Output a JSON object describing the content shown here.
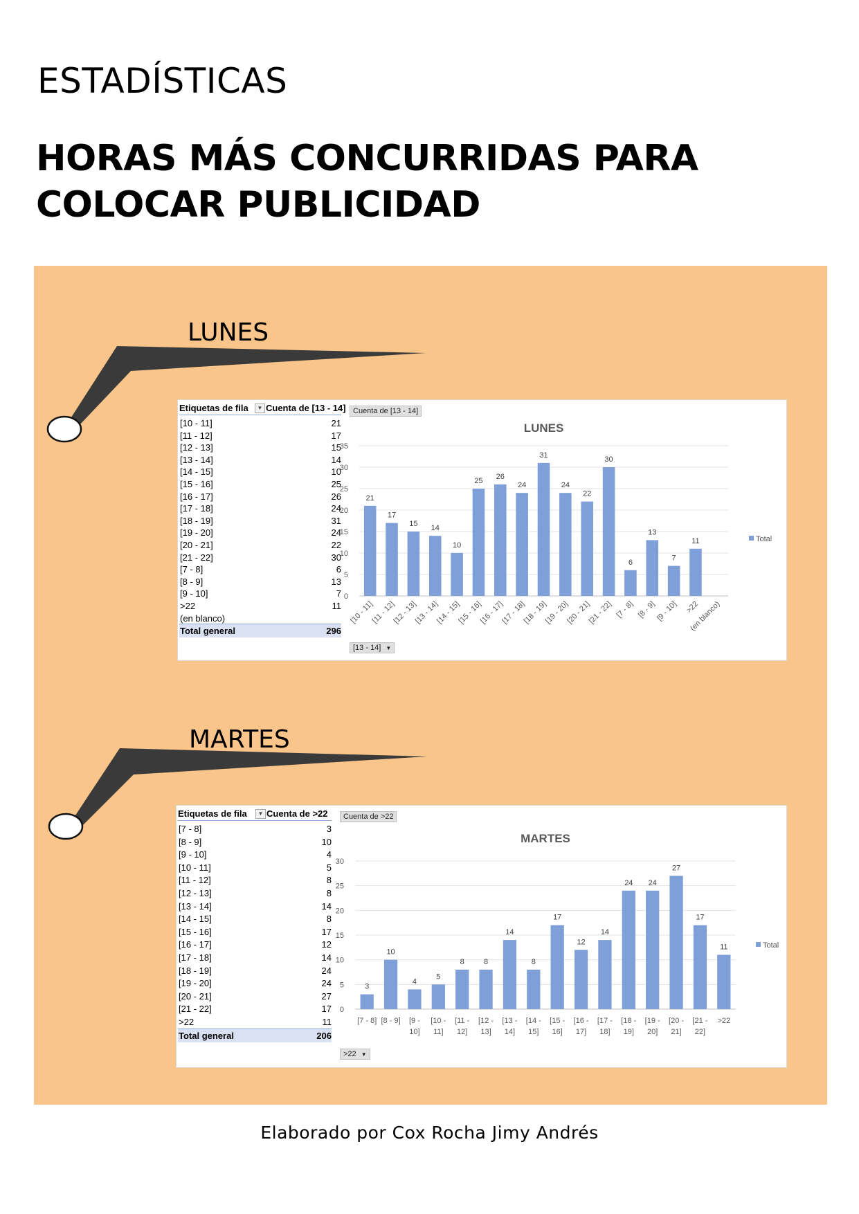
{
  "header": {
    "section": "ESTADÍSTICAS",
    "title": "HORAS MÁS CONCURRIDAS PARA COLOCAR PUBLICIDAD"
  },
  "days": [
    {
      "day": "LUNES",
      "pivot": {
        "col1": "Etiquetas de fila",
        "col2": "Cuenta de [13 - 14]",
        "rows": [
          {
            "k": "[10 - 11]",
            "v": "21"
          },
          {
            "k": "[11 - 12]",
            "v": "17"
          },
          {
            "k": "[12 - 13]",
            "v": "15"
          },
          {
            "k": "[13 - 14]",
            "v": "14"
          },
          {
            "k": "[14 - 15]",
            "v": "10"
          },
          {
            "k": "[15 - 16]",
            "v": "25"
          },
          {
            "k": "[16 - 17]",
            "v": "26"
          },
          {
            "k": "[17 - 18]",
            "v": "24"
          },
          {
            "k": "[18 - 19]",
            "v": "31"
          },
          {
            "k": "[19 - 20]",
            "v": "24"
          },
          {
            "k": "[20 - 21]",
            "v": "22"
          },
          {
            "k": "[21 - 22]",
            "v": "30"
          },
          {
            "k": "[7 - 8]",
            "v": "6"
          },
          {
            "k": "[8 - 9]",
            "v": "13"
          },
          {
            "k": "[9 - 10]",
            "v": "7"
          },
          {
            "k": ">22",
            "v": "11"
          },
          {
            "k": "(en blanco)",
            "v": ""
          }
        ],
        "total_label": "Total general",
        "total": "296"
      },
      "field_button": "Cuenta de [13 - 14]",
      "filter_button": "[13 - 14]",
      "legend_label": "Total",
      "series_color": "#7e9fd7",
      "chart_data": {
        "type": "bar",
        "title": "LUNES",
        "categories": [
          "[10 - 11]",
          "[11 - 12]",
          "[12 - 13]",
          "[13 - 14]",
          "[14 - 15]",
          "[15 - 16]",
          "[16 - 17]",
          "[17 - 18]",
          "[18 - 19]",
          "[19 - 20]",
          "[20 - 21]",
          "[21 - 22]",
          "[7 - 8]",
          "[8 - 9]",
          "[9 - 10]",
          ">22",
          "(en blanco)"
        ],
        "series": [
          {
            "name": "Total",
            "values": [
              21,
              17,
              15,
              14,
              10,
              25,
              26,
              24,
              31,
              24,
              22,
              30,
              6,
              13,
              7,
              11,
              null
            ]
          }
        ],
        "yticks": [
          0,
          5,
          10,
          15,
          20,
          25,
          30,
          35
        ],
        "ylim": [
          0,
          35
        ],
        "grid": true,
        "legend": "right"
      }
    },
    {
      "day": "MARTES",
      "pivot": {
        "col1": "Etiquetas de fila",
        "col2": "Cuenta de >22",
        "rows": [
          {
            "k": "[7 - 8]",
            "v": "3"
          },
          {
            "k": "[8 - 9]",
            "v": "10"
          },
          {
            "k": "[9 - 10]",
            "v": "4"
          },
          {
            "k": "[10 - 11]",
            "v": "5"
          },
          {
            "k": "[11 - 12]",
            "v": "8"
          },
          {
            "k": "[12 - 13]",
            "v": "8"
          },
          {
            "k": "[13 - 14]",
            "v": "14"
          },
          {
            "k": "[14 - 15]",
            "v": "8"
          },
          {
            "k": "[15 - 16]",
            "v": "17"
          },
          {
            "k": "[16 - 17]",
            "v": "12"
          },
          {
            "k": "[17 - 18]",
            "v": "14"
          },
          {
            "k": "[18 - 19]",
            "v": "24"
          },
          {
            "k": "[19 - 20]",
            "v": "24"
          },
          {
            "k": "[20 - 21]",
            "v": "27"
          },
          {
            "k": "[21 - 22]",
            "v": "17"
          },
          {
            "k": ">22",
            "v": "11"
          }
        ],
        "total_label": "Total general",
        "total": "206"
      },
      "field_button": "Cuenta de >22",
      "filter_button": ">22",
      "legend_label": "Total",
      "series_color": "#7e9fd7",
      "chart_data": {
        "type": "bar",
        "title": "MARTES",
        "categories": [
          "[7 - 8]",
          "[8 - 9]",
          "[9 - 10]",
          "[10 - 11]",
          "[11 - 12]",
          "[12 - 13]",
          "[13 - 14]",
          "[14 - 15]",
          "[15 - 16]",
          "[16 - 17]",
          "[17 - 18]",
          "[18 - 19]",
          "[19 - 20]",
          "[20 - 21]",
          "[21 - 22]",
          ">22"
        ],
        "category_lines": [
          [
            "[7 - 8]"
          ],
          [
            "[8 - 9]"
          ],
          [
            "[9 -",
            "10]"
          ],
          [
            "[10 -",
            "11]"
          ],
          [
            "[11 -",
            "12]"
          ],
          [
            "[12 -",
            "13]"
          ],
          [
            "[13 -",
            "14]"
          ],
          [
            "[14 -",
            "15]"
          ],
          [
            "[15 -",
            "16]"
          ],
          [
            "[16 -",
            "17]"
          ],
          [
            "[17 -",
            "18]"
          ],
          [
            "[18 -",
            "19]"
          ],
          [
            "[19 -",
            "20]"
          ],
          [
            "[20 -",
            "21]"
          ],
          [
            "[21 -",
            "22]"
          ],
          [
            ">22"
          ]
        ],
        "series": [
          {
            "name": "Total",
            "values": [
              3,
              10,
              4,
              5,
              8,
              8,
              14,
              8,
              17,
              12,
              14,
              24,
              24,
              27,
              17,
              11
            ]
          }
        ],
        "yticks": [
          0,
          5,
          10,
          15,
          20,
          25,
          30
        ],
        "ylim": [
          0,
          30
        ],
        "grid": true,
        "legend": "right"
      }
    }
  ],
  "footer": {
    "credit": "Elaborado por Cox Rocha Jimy Andrés"
  }
}
